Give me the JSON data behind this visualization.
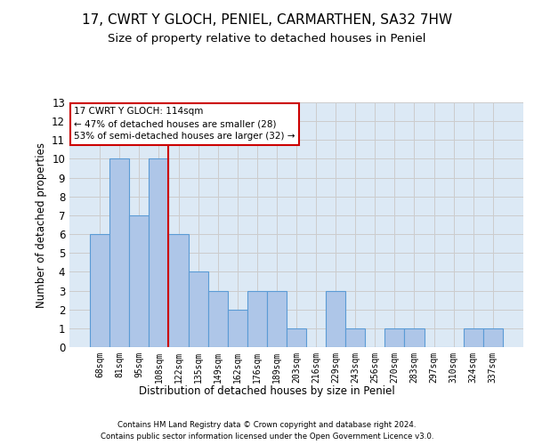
{
  "title1": "17, CWRT Y GLOCH, PENIEL, CARMARTHEN, SA32 7HW",
  "title2": "Size of property relative to detached houses in Peniel",
  "xlabel": "Distribution of detached houses by size in Peniel",
  "ylabel": "Number of detached properties",
  "categories": [
    "68sqm",
    "81sqm",
    "95sqm",
    "108sqm",
    "122sqm",
    "135sqm",
    "149sqm",
    "162sqm",
    "176sqm",
    "189sqm",
    "203sqm",
    "216sqm",
    "229sqm",
    "243sqm",
    "256sqm",
    "270sqm",
    "283sqm",
    "297sqm",
    "310sqm",
    "324sqm",
    "337sqm"
  ],
  "values": [
    6,
    10,
    7,
    10,
    6,
    4,
    3,
    2,
    3,
    3,
    1,
    0,
    3,
    1,
    0,
    1,
    1,
    0,
    0,
    1,
    1
  ],
  "bar_color": "#aec6e8",
  "bar_edge_color": "#5b9bd5",
  "annotation_line1": "17 CWRT Y GLOCH: 114sqm",
  "annotation_line2": "← 47% of detached houses are smaller (28)",
  "annotation_line3": "53% of semi-detached houses are larger (32) →",
  "annotation_box_color": "#ffffff",
  "annotation_box_edge_color": "#cc0000",
  "ylim": [
    0,
    13
  ],
  "yticks": [
    0,
    1,
    2,
    3,
    4,
    5,
    6,
    7,
    8,
    9,
    10,
    11,
    12,
    13
  ],
  "grid_color": "#cccccc",
  "bg_color": "#dce9f5",
  "footer1": "Contains HM Land Registry data © Crown copyright and database right 2024.",
  "footer2": "Contains public sector information licensed under the Open Government Licence v3.0.",
  "red_line_color": "#cc0000",
  "title1_fontsize": 11,
  "title2_fontsize": 9.5
}
